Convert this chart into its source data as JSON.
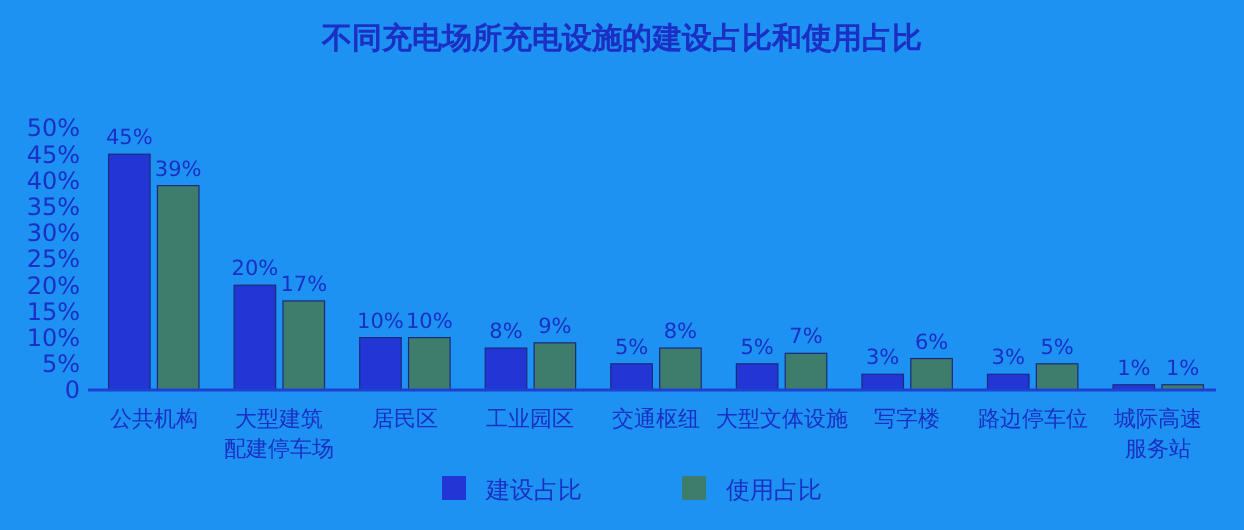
{
  "chart_data": {
    "type": "bar",
    "title": "不同充电场所充电设施的建设占比和使用占比",
    "categories": [
      "公共机构",
      "大型建筑配建停车场",
      "居民区",
      "工业园区",
      "交通枢纽",
      "大型文体设施",
      "写字楼",
      "路边停车位",
      "城际高速服务站"
    ],
    "series": [
      {
        "name": "建设占比",
        "color": "#2236d6",
        "values": [
          45,
          20,
          10,
          8,
          5,
          5,
          3,
          3,
          1
        ],
        "value_labels": [
          "45%",
          "20%",
          "10%",
          "8%",
          "5%",
          "5%",
          "3%",
          "3%",
          "1%"
        ]
      },
      {
        "name": "使用占比",
        "color": "#3e7c6c",
        "values": [
          39,
          17,
          10,
          9,
          8,
          7,
          6,
          5,
          1
        ],
        "value_labels": [
          "39%",
          "17%",
          "10%",
          "9%",
          "8%",
          "7%",
          "6%",
          "5%",
          "1%"
        ]
      }
    ],
    "ylim": [
      0,
      50
    ],
    "yticks": [
      0,
      {
        "value": 5,
        "label": "5%"
      },
      {
        "value": 10,
        "label": "10%"
      },
      {
        "value": 15,
        "label": "15%"
      },
      {
        "value": 20,
        "label": "20%"
      },
      {
        "value": 25,
        "label": "25%"
      },
      {
        "value": 30,
        "label": "30%"
      },
      {
        "value": 35,
        "label": "35%"
      },
      {
        "value": 40,
        "label": "40%"
      },
      {
        "value": 45,
        "label": "45%"
      },
      {
        "value": 50,
        "label": "50%"
      }
    ],
    "grid": false,
    "legend": "bottom"
  }
}
